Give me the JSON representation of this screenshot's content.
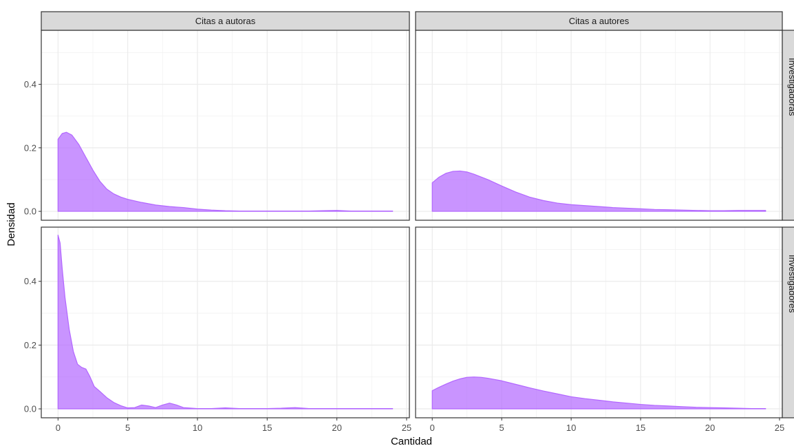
{
  "chart_data": {
    "type": "area",
    "facet_cols": [
      "Citas a autoras",
      "Citas a autores"
    ],
    "facet_rows": [
      "Investigadoras",
      "Investigadores"
    ],
    "xlabel": "Cantidad",
    "ylabel": "Densidad",
    "xlim": [
      -1.2,
      25.2
    ],
    "ylim": [
      -0.028,
      0.57
    ],
    "x_ticks": [
      "0",
      "5",
      "10",
      "15",
      "20",
      "25"
    ],
    "y_ticks": [
      "0.0",
      "0.2",
      "0.4"
    ],
    "x_tick_values": [
      0,
      5,
      10,
      15,
      20,
      25
    ],
    "y_tick_values": [
      0,
      0.2,
      0.4
    ],
    "fill_color": "#b266ff",
    "fill_opacity": 0.7,
    "grid": true,
    "legend": "none",
    "panels": [
      {
        "col": "Citas a autoras",
        "row": "Investigadoras",
        "x": [
          0,
          0.3,
          0.6,
          1,
          1.5,
          2,
          2.5,
          3,
          3.5,
          4,
          4.5,
          5,
          6,
          7,
          8,
          9,
          10,
          11,
          12,
          13,
          14,
          15,
          16,
          17,
          18,
          19,
          20,
          21,
          22,
          23,
          24
        ],
        "y": [
          0.227,
          0.245,
          0.249,
          0.24,
          0.21,
          0.17,
          0.13,
          0.095,
          0.07,
          0.055,
          0.045,
          0.038,
          0.028,
          0.02,
          0.015,
          0.012,
          0.007,
          0.004,
          0.002,
          0.001,
          0.001,
          0.001,
          0.001,
          0.001,
          0.001,
          0.002,
          0.003,
          0.001,
          0.001,
          0.001,
          0.001
        ]
      },
      {
        "col": "Citas a autores",
        "row": "Investigadoras",
        "x": [
          0,
          0.5,
          1,
          1.5,
          2,
          2.5,
          3,
          4,
          5,
          6,
          7,
          8,
          9,
          10,
          11,
          12,
          13,
          14,
          15,
          16,
          17,
          18,
          19,
          20,
          21,
          22,
          23,
          24
        ],
        "y": [
          0.09,
          0.108,
          0.12,
          0.126,
          0.127,
          0.124,
          0.117,
          0.1,
          0.08,
          0.061,
          0.045,
          0.034,
          0.026,
          0.021,
          0.018,
          0.015,
          0.012,
          0.01,
          0.008,
          0.006,
          0.005,
          0.004,
          0.003,
          0.002,
          0.002,
          0.003,
          0.003,
          0.003
        ]
      },
      {
        "col": "Citas a autoras",
        "row": "Investigadores",
        "x": [
          0,
          0.15,
          0.3,
          0.5,
          0.8,
          1.1,
          1.4,
          1.7,
          2,
          2.3,
          2.6,
          3,
          3.5,
          4,
          4.5,
          5,
          5.5,
          6,
          6.5,
          7,
          7.5,
          8,
          8.5,
          9,
          10,
          11,
          12,
          13,
          14,
          15,
          16,
          17,
          18,
          19,
          20,
          21,
          22,
          23,
          24
        ],
        "y": [
          0.545,
          0.52,
          0.44,
          0.35,
          0.25,
          0.18,
          0.14,
          0.13,
          0.125,
          0.1,
          0.07,
          0.055,
          0.035,
          0.02,
          0.01,
          0.003,
          0.004,
          0.012,
          0.009,
          0.004,
          0.012,
          0.018,
          0.012,
          0.004,
          0.001,
          0.001,
          0.003,
          0.001,
          0.001,
          0.001,
          0.002,
          0.004,
          0.001,
          0.001,
          0.001,
          0.001,
          0.001,
          0.001,
          0.001
        ]
      },
      {
        "col": "Citas a autores",
        "row": "Investigadores",
        "x": [
          0,
          0.5,
          1,
          1.5,
          2,
          2.5,
          3,
          3.5,
          4,
          5,
          6,
          7,
          8,
          9,
          10,
          11,
          12,
          13,
          14,
          15,
          16,
          17,
          18,
          19,
          20,
          21,
          22,
          23,
          24
        ],
        "y": [
          0.057,
          0.068,
          0.078,
          0.087,
          0.094,
          0.099,
          0.1,
          0.099,
          0.096,
          0.088,
          0.077,
          0.066,
          0.056,
          0.047,
          0.038,
          0.032,
          0.027,
          0.022,
          0.018,
          0.014,
          0.011,
          0.009,
          0.007,
          0.005,
          0.004,
          0.003,
          0.002,
          0.001,
          0.001
        ]
      }
    ]
  }
}
